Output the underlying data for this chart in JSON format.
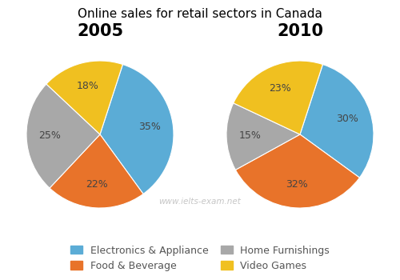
{
  "title": "Online sales for retail sectors in Canada",
  "year_labels": [
    "2005",
    "2010"
  ],
  "categories": [
    "Electronics & Appliance",
    "Food & Beverage",
    "Home Furnishings",
    "Video Games"
  ],
  "colors": [
    "#5BACD6",
    "#E8732A",
    "#A8A8A8",
    "#F0C020"
  ],
  "values_2005": [
    35,
    22,
    25,
    18
  ],
  "values_2010": [
    30,
    32,
    15,
    23
  ],
  "watermark": "www.ielts-exam.net",
  "legend_labels": [
    "Electronics & Appliance",
    "Food & Beverage",
    "Home Furnishings",
    "Video Games"
  ],
  "startangle_2005": 72,
  "startangle_2010": 72,
  "pct_color": "#444444",
  "pct_fontsize": 9,
  "title_fontsize": 11,
  "year_fontsize": 15,
  "legend_fontsize": 9
}
